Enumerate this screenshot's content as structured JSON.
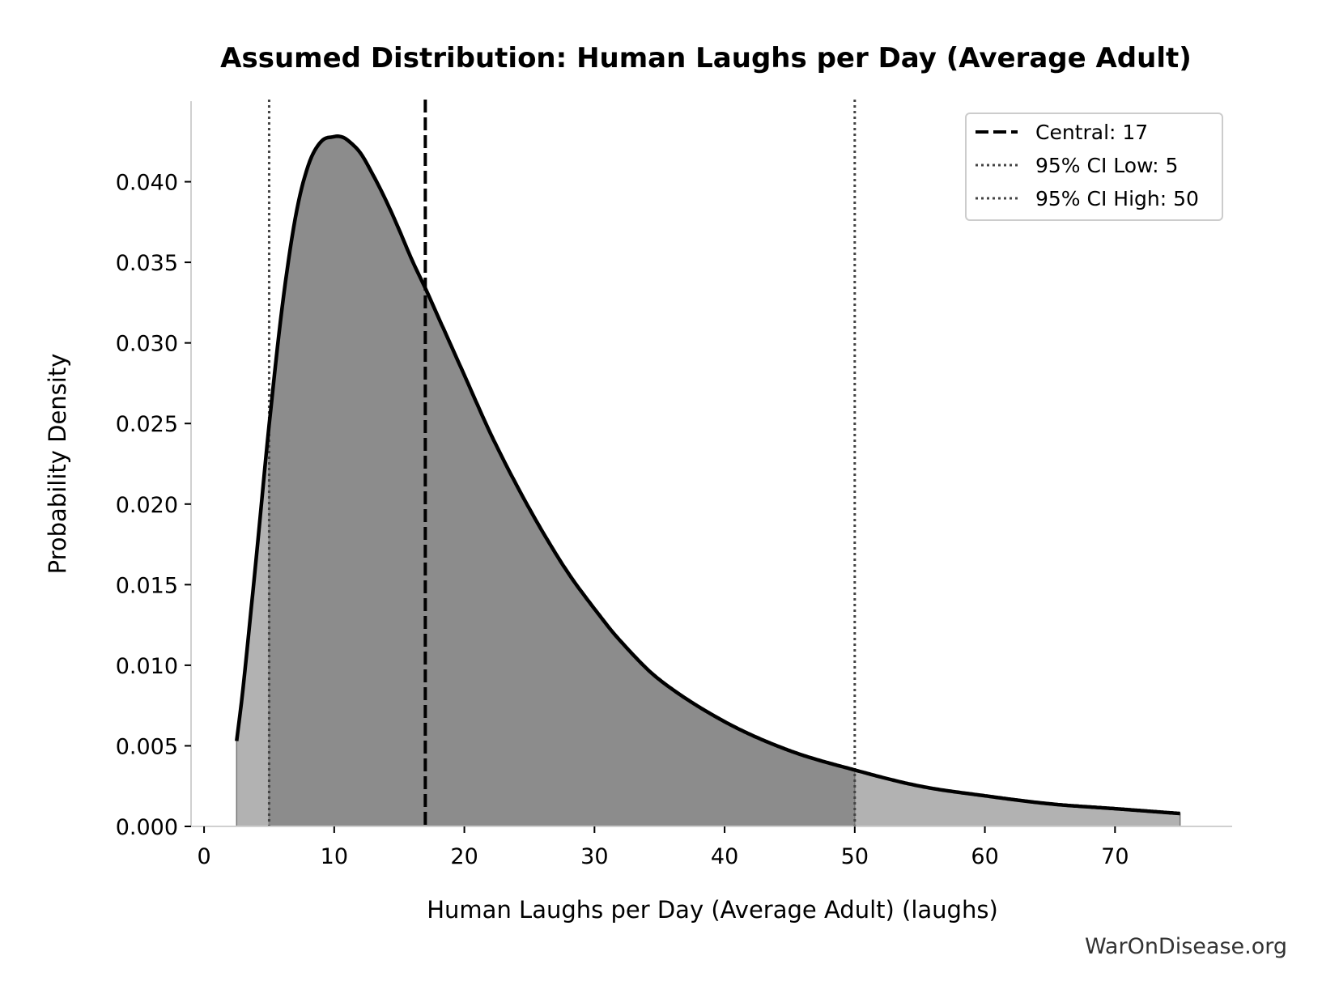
{
  "chart_data": {
    "type": "area",
    "title": "Assumed Distribution: Human Laughs per Day (Average Adult)",
    "xlabel": "Human Laughs per Day (Average Adult) (laughs)",
    "ylabel": "Probability Density",
    "xlim": [
      -1,
      79
    ],
    "ylim": [
      0,
      0.045
    ],
    "x_ticks": [
      0,
      10,
      20,
      30,
      40,
      50,
      60,
      70
    ],
    "x_tick_labels": [
      "0",
      "10",
      "20",
      "30",
      "40",
      "50",
      "60",
      "70"
    ],
    "y_ticks": [
      0.0,
      0.005,
      0.01,
      0.015,
      0.02,
      0.025,
      0.03,
      0.035,
      0.04
    ],
    "y_tick_labels": [
      "0.000",
      "0.005",
      "0.010",
      "0.015",
      "0.020",
      "0.025",
      "0.030",
      "0.035",
      "0.040"
    ],
    "grid": false,
    "legend_position": "top-right",
    "series": [
      {
        "style": "solid-line-with-fill",
        "x": [
          2.5,
          3,
          4,
          5,
          6,
          7,
          8,
          9,
          10,
          10.5,
          11,
          12,
          13,
          14,
          15,
          16,
          17,
          18,
          20,
          22,
          24,
          26,
          28,
          30,
          32,
          35,
          40,
          45,
          50,
          55,
          60,
          65,
          70,
          75
        ],
        "y": [
          0.0053,
          0.0086,
          0.0166,
          0.0249,
          0.0322,
          0.0377,
          0.041,
          0.0425,
          0.0428,
          0.0428,
          0.0426,
          0.0418,
          0.0404,
          0.0388,
          0.037,
          0.0351,
          0.0334,
          0.0316,
          0.028,
          0.0244,
          0.0212,
          0.0183,
          0.0157,
          0.0135,
          0.0115,
          0.0091,
          0.0065,
          0.0047,
          0.0035,
          0.0025,
          0.0019,
          0.0014,
          0.0011,
          0.0008
        ]
      }
    ],
    "ci_range": [
      5,
      50
    ],
    "reference_lines": [
      {
        "label": "Central: 17",
        "x": 17,
        "style": "dashed"
      },
      {
        "label": "95% CI Low: 5",
        "x": 5,
        "style": "dotted"
      },
      {
        "label": "95% CI High: 50",
        "x": 50,
        "style": "dotted"
      }
    ],
    "watermark": "WarOnDisease.org"
  },
  "colors": {
    "curve": "#000000",
    "fill_ci": "#8c8c8c",
    "fill_tail": "#b2b2b2",
    "axis": "#d0d0d0",
    "ci_line": "#444444"
  }
}
